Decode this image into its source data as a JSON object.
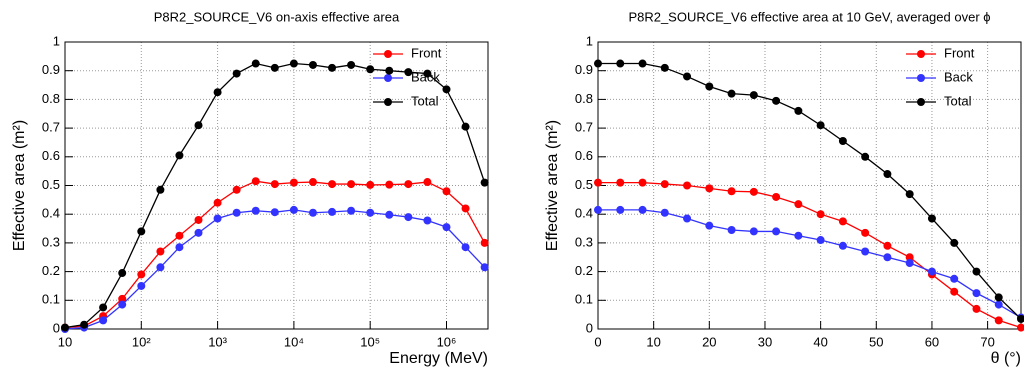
{
  "chart_data": [
    {
      "type": "line",
      "title": "P8R2_SOURCE_V6 on-axis effective area",
      "xlabel": "Energy (MeV)",
      "ylabel": "Effective area (m²)",
      "xlog": true,
      "grid": true,
      "legend": "top-right",
      "x": [
        10,
        17.8,
        31.6,
        56.2,
        100,
        178,
        316,
        562,
        1000,
        1778,
        3162,
        5623,
        10000,
        17783,
        31623,
        56234,
        100000,
        177828,
        316228,
        562341,
        1000000,
        1778279,
        3162278
      ],
      "xlim": [
        10,
        3500000
      ],
      "xticks": [
        10,
        {
          "value": 100,
          "label": "10²"
        },
        {
          "value": 1000,
          "label": "10³"
        },
        {
          "value": 10000,
          "label": "10⁴"
        },
        {
          "value": 100000,
          "label": "10⁵"
        },
        {
          "value": 1000000,
          "label": "10⁶"
        }
      ],
      "ylim": [
        0,
        1
      ],
      "yticks": [
        0,
        0.1,
        0.2,
        0.3,
        0.4,
        0.5,
        0.6,
        0.7,
        0.8,
        0.9,
        1
      ],
      "series": [
        {
          "name": "Front",
          "color": "#ff0000",
          "values": [
            0.005,
            0.01,
            0.045,
            0.105,
            0.19,
            0.27,
            0.325,
            0.38,
            0.44,
            0.485,
            0.515,
            0.505,
            0.51,
            0.512,
            0.505,
            0.505,
            0.502,
            0.503,
            0.505,
            0.512,
            0.48,
            0.42,
            0.3
          ]
        },
        {
          "name": "Back",
          "color": "#3333ff",
          "values": [
            0,
            0.005,
            0.03,
            0.085,
            0.15,
            0.215,
            0.285,
            0.335,
            0.385,
            0.405,
            0.412,
            0.407,
            0.415,
            0.405,
            0.408,
            0.412,
            0.405,
            0.398,
            0.39,
            0.378,
            0.355,
            0.285,
            0.215
          ]
        },
        {
          "name": "Total",
          "color": "#000000",
          "values": [
            0.005,
            0.015,
            0.075,
            0.195,
            0.34,
            0.485,
            0.605,
            0.71,
            0.825,
            0.89,
            0.925,
            0.91,
            0.925,
            0.92,
            0.91,
            0.92,
            0.905,
            0.9,
            0.895,
            0.89,
            0.835,
            0.705,
            0.51
          ]
        }
      ]
    },
    {
      "type": "line",
      "title": "P8R2_SOURCE_V6 effective area at 10 GeV, averaged over ϕ",
      "xlabel": "θ (°)",
      "ylabel": "Effective area (m²)",
      "xlog": false,
      "grid": true,
      "legend": "top-right",
      "x": [
        0,
        4,
        8,
        12,
        16,
        20,
        24,
        28,
        32,
        36,
        40,
        44,
        48,
        52,
        56,
        60,
        64,
        68,
        72,
        76
      ],
      "xlim": [
        0,
        76
      ],
      "xticks": [
        0,
        10,
        20,
        30,
        40,
        50,
        60,
        70
      ],
      "ylim": [
        0,
        1
      ],
      "yticks": [
        0,
        0.1,
        0.2,
        0.3,
        0.4,
        0.5,
        0.6,
        0.7,
        0.8,
        0.9,
        1
      ],
      "series": [
        {
          "name": "Front",
          "color": "#ff0000",
          "values": [
            0.51,
            0.51,
            0.51,
            0.505,
            0.5,
            0.49,
            0.48,
            0.478,
            0.46,
            0.435,
            0.4,
            0.375,
            0.335,
            0.29,
            0.25,
            0.19,
            0.13,
            0.07,
            0.03,
            0.005
          ]
        },
        {
          "name": "Back",
          "color": "#3333ff",
          "values": [
            0.415,
            0.415,
            0.415,
            0.405,
            0.385,
            0.36,
            0.345,
            0.34,
            0.34,
            0.325,
            0.31,
            0.29,
            0.27,
            0.25,
            0.23,
            0.2,
            0.175,
            0.125,
            0.085,
            0.04
          ]
        },
        {
          "name": "Total",
          "color": "#000000",
          "values": [
            0.925,
            0.925,
            0.925,
            0.91,
            0.88,
            0.845,
            0.82,
            0.815,
            0.795,
            0.76,
            0.71,
            0.655,
            0.6,
            0.54,
            0.47,
            0.385,
            0.3,
            0.2,
            0.11,
            0.035
          ]
        }
      ]
    }
  ]
}
